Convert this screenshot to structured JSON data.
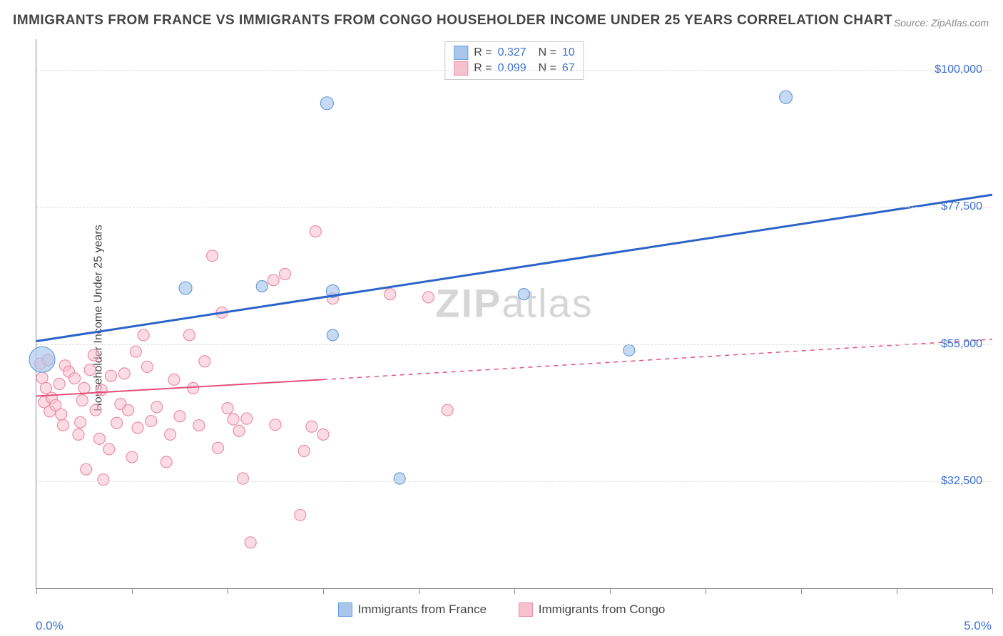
{
  "chart": {
    "type": "scatter-correlation",
    "title": "IMMIGRANTS FROM FRANCE VS IMMIGRANTS FROM CONGO HOUSEHOLDER INCOME UNDER 25 YEARS CORRELATION CHART",
    "source": "Source: ZipAtlas.com",
    "watermark": "ZIPatlas",
    "y_axis": {
      "label": "Householder Income Under 25 years",
      "min": 15000,
      "max": 105000,
      "ticks": [
        32500,
        55000,
        77500,
        100000
      ],
      "tick_labels": [
        "$32,500",
        "$55,000",
        "$77,500",
        "$100,000"
      ],
      "grid_color": "#dcdcdc",
      "label_color": "#3d6fd6",
      "label_fontsize": 16
    },
    "x_axis": {
      "label_min": "0.0%",
      "label_max": "5.0%",
      "min": 0.0,
      "max": 5.0,
      "ticks": [
        0.0,
        0.5,
        1.0,
        1.5,
        2.0,
        2.5,
        3.0,
        3.5,
        4.0,
        4.5,
        5.0
      ],
      "label_color": "#3d6fd6",
      "label_fontsize": 17
    },
    "series": [
      {
        "name": "Immigrants from France",
        "color_fill": "#a9c6ec",
        "color_stroke": "#6a9edb",
        "trend_color": "#2b63c9",
        "trend_width": 3,
        "trend_dash": "none",
        "R": "0.327",
        "N": "10",
        "marker_opacity": 0.65,
        "points": [
          {
            "x": 0.03,
            "y": 52500,
            "r": 18
          },
          {
            "x": 0.78,
            "y": 64200,
            "r": 9
          },
          {
            "x": 1.18,
            "y": 64500,
            "r": 8
          },
          {
            "x": 1.55,
            "y": 63700,
            "r": 9
          },
          {
            "x": 1.52,
            "y": 94500,
            "r": 9
          },
          {
            "x": 1.55,
            "y": 56500,
            "r": 8
          },
          {
            "x": 1.9,
            "y": 33000,
            "r": 8
          },
          {
            "x": 2.55,
            "y": 63200,
            "r": 8
          },
          {
            "x": 3.1,
            "y": 54000,
            "r": 8
          },
          {
            "x": 3.92,
            "y": 95500,
            "r": 9
          }
        ],
        "trend": {
          "x1": 0.0,
          "y1": 55500,
          "x2": 5.0,
          "y2": 79500
        }
      },
      {
        "name": "Immigrants from Congo",
        "color_fill": "#f7c0cd",
        "color_stroke": "#ea8fa6",
        "trend_color": "#e74f7a",
        "trend_width": 2,
        "trend_dash": "solid-then-dashed",
        "R": "0.099",
        "N": "67",
        "marker_opacity": 0.55,
        "points": [
          {
            "x": 0.02,
            "y": 51800,
            "r": 8
          },
          {
            "x": 0.03,
            "y": 49500,
            "r": 8
          },
          {
            "x": 0.04,
            "y": 45500,
            "r": 8
          },
          {
            "x": 0.05,
            "y": 47800,
            "r": 8
          },
          {
            "x": 0.06,
            "y": 52400,
            "r": 8
          },
          {
            "x": 0.07,
            "y": 44000,
            "r": 8
          },
          {
            "x": 0.08,
            "y": 46200,
            "r": 8
          },
          {
            "x": 0.1,
            "y": 45000,
            "r": 8
          },
          {
            "x": 0.12,
            "y": 48500,
            "r": 8
          },
          {
            "x": 0.13,
            "y": 43500,
            "r": 8
          },
          {
            "x": 0.14,
            "y": 41700,
            "r": 8
          },
          {
            "x": 0.15,
            "y": 51500,
            "r": 8
          },
          {
            "x": 0.17,
            "y": 50500,
            "r": 8
          },
          {
            "x": 0.2,
            "y": 49400,
            "r": 8
          },
          {
            "x": 0.22,
            "y": 40200,
            "r": 8
          },
          {
            "x": 0.23,
            "y": 42200,
            "r": 8
          },
          {
            "x": 0.24,
            "y": 45800,
            "r": 8
          },
          {
            "x": 0.25,
            "y": 47800,
            "r": 8
          },
          {
            "x": 0.26,
            "y": 34500,
            "r": 8
          },
          {
            "x": 0.28,
            "y": 50800,
            "r": 8
          },
          {
            "x": 0.3,
            "y": 53200,
            "r": 8
          },
          {
            "x": 0.31,
            "y": 44200,
            "r": 8
          },
          {
            "x": 0.33,
            "y": 39500,
            "r": 8
          },
          {
            "x": 0.34,
            "y": 47500,
            "r": 8
          },
          {
            "x": 0.35,
            "y": 32800,
            "r": 8
          },
          {
            "x": 0.38,
            "y": 37800,
            "r": 8
          },
          {
            "x": 0.39,
            "y": 49800,
            "r": 8
          },
          {
            "x": 0.42,
            "y": 42100,
            "r": 8
          },
          {
            "x": 0.44,
            "y": 45200,
            "r": 8
          },
          {
            "x": 0.46,
            "y": 50200,
            "r": 8
          },
          {
            "x": 0.48,
            "y": 44200,
            "r": 8
          },
          {
            "x": 0.5,
            "y": 36500,
            "r": 8
          },
          {
            "x": 0.52,
            "y": 53800,
            "r": 8
          },
          {
            "x": 0.53,
            "y": 41300,
            "r": 8
          },
          {
            "x": 0.56,
            "y": 56500,
            "r": 8
          },
          {
            "x": 0.58,
            "y": 51300,
            "r": 8
          },
          {
            "x": 0.6,
            "y": 42400,
            "r": 8
          },
          {
            "x": 0.63,
            "y": 44700,
            "r": 8
          },
          {
            "x": 0.68,
            "y": 35700,
            "r": 8
          },
          {
            "x": 0.7,
            "y": 40200,
            "r": 8
          },
          {
            "x": 0.72,
            "y": 49200,
            "r": 8
          },
          {
            "x": 0.75,
            "y": 43200,
            "r": 8
          },
          {
            "x": 0.8,
            "y": 56500,
            "r": 8
          },
          {
            "x": 0.82,
            "y": 47800,
            "r": 8
          },
          {
            "x": 0.85,
            "y": 41700,
            "r": 8
          },
          {
            "x": 0.88,
            "y": 52200,
            "r": 8
          },
          {
            "x": 0.92,
            "y": 69500,
            "r": 8
          },
          {
            "x": 0.95,
            "y": 38000,
            "r": 8
          },
          {
            "x": 0.97,
            "y": 60200,
            "r": 8
          },
          {
            "x": 1.0,
            "y": 44500,
            "r": 8
          },
          {
            "x": 1.03,
            "y": 42700,
            "r": 8
          },
          {
            "x": 1.06,
            "y": 40800,
            "r": 8
          },
          {
            "x": 1.08,
            "y": 33000,
            "r": 8
          },
          {
            "x": 1.1,
            "y": 42800,
            "r": 8
          },
          {
            "x": 1.12,
            "y": 22500,
            "r": 8
          },
          {
            "x": 1.24,
            "y": 65500,
            "r": 8
          },
          {
            "x": 1.25,
            "y": 41800,
            "r": 8
          },
          {
            "x": 1.3,
            "y": 66500,
            "r": 8
          },
          {
            "x": 1.38,
            "y": 27000,
            "r": 8
          },
          {
            "x": 1.4,
            "y": 37500,
            "r": 8
          },
          {
            "x": 1.44,
            "y": 41500,
            "r": 8
          },
          {
            "x": 1.46,
            "y": 73500,
            "r": 8
          },
          {
            "x": 1.5,
            "y": 40200,
            "r": 8
          },
          {
            "x": 1.55,
            "y": 62500,
            "r": 8
          },
          {
            "x": 1.85,
            "y": 63200,
            "r": 8
          },
          {
            "x": 2.05,
            "y": 62700,
            "r": 8
          },
          {
            "x": 2.15,
            "y": 44200,
            "r": 8
          }
        ],
        "trend_solid": {
          "x1": 0.0,
          "y1": 46500,
          "x2": 1.5,
          "y2": 49200
        },
        "trend_dashed": {
          "x1": 1.5,
          "y1": 49200,
          "x2": 5.0,
          "y2": 55800
        }
      }
    ],
    "legend_bottom": [
      {
        "label": "Immigrants from France",
        "fill": "#a9c6ec",
        "stroke": "#6a9edb"
      },
      {
        "label": "Immigrants from Congo",
        "fill": "#f7c0cd",
        "stroke": "#ea8fa6"
      }
    ],
    "background_color": "#ffffff",
    "plot_border_color": "#888888",
    "title_fontsize": 19
  }
}
